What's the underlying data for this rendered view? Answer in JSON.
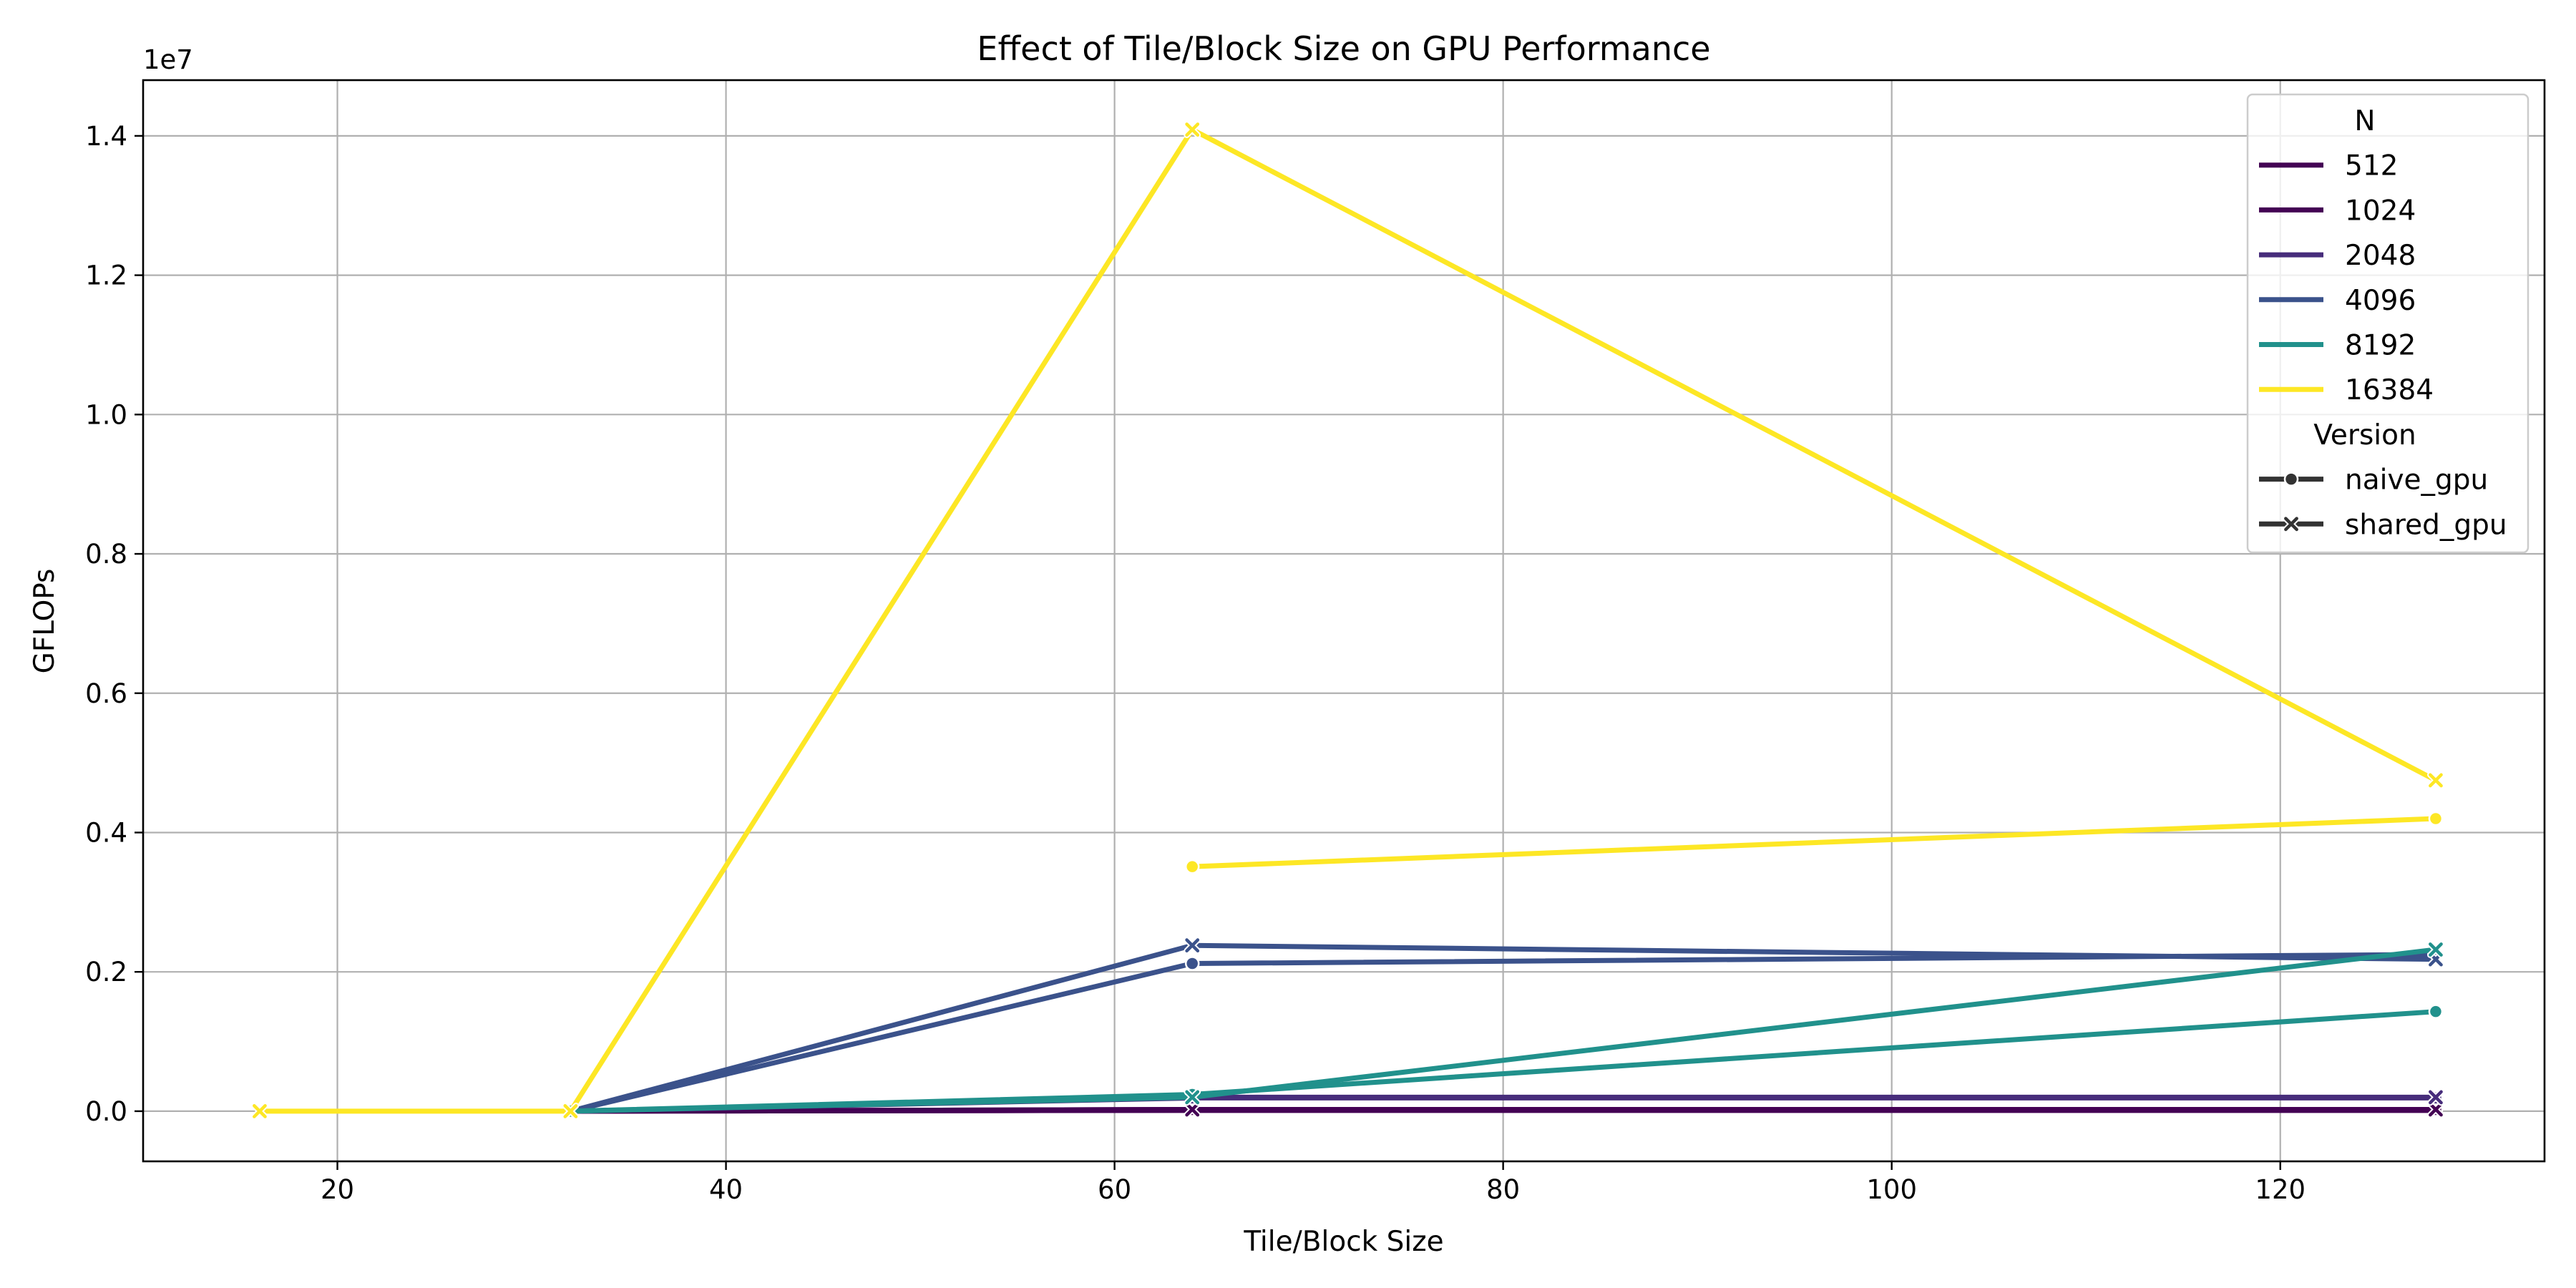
{
  "chart_data": {
    "type": "line",
    "title": "Effect of Tile/Block Size on GPU Performance",
    "xlabel": "Tile/Block Size",
    "ylabel": "GFLOPs",
    "y_offset_label": "1e7",
    "xlim": [
      10,
      133.6
    ],
    "ylim": [
      -720000,
      14800000
    ],
    "x_ticks": [
      20,
      40,
      60,
      80,
      100,
      120
    ],
    "y_ticks": [
      0,
      2000000,
      4000000,
      6000000,
      8000000,
      10000000,
      12000000,
      14000000
    ],
    "y_tick_labels": [
      "0.0",
      "0.2",
      "0.4",
      "0.6",
      "0.8",
      "1.0",
      "1.2",
      "1.4"
    ],
    "grid": true,
    "legend": {
      "placement": "top-right",
      "hue_title": "N",
      "style_title": "Version",
      "hue_entries": [
        {
          "label": "512",
          "color": "#440154"
        },
        {
          "label": "1024",
          "color": "#440154"
        },
        {
          "label": "2048",
          "color": "#472d7b"
        },
        {
          "label": "4096",
          "color": "#3b528b"
        },
        {
          "label": "8192",
          "color": "#21918c"
        },
        {
          "label": "16384",
          "color": "#fde725"
        }
      ],
      "style_entries": [
        {
          "label": "naive_gpu",
          "marker": "circle"
        },
        {
          "label": "shared_gpu",
          "marker": "x"
        }
      ]
    },
    "series": [
      {
        "N": "512",
        "version": "naive_gpu",
        "color": "#440154",
        "marker": "circle",
        "x": [
          32,
          64,
          128
        ],
        "y": [
          0,
          12000,
          12000
        ]
      },
      {
        "N": "512",
        "version": "shared_gpu",
        "color": "#440154",
        "marker": "x",
        "x": [
          32,
          64,
          128
        ],
        "y": [
          0,
          12000,
          12000
        ]
      },
      {
        "N": "1024",
        "version": "naive_gpu",
        "color": "#440154",
        "marker": "circle",
        "x": [
          32,
          64,
          128
        ],
        "y": [
          0,
          25000,
          25000
        ]
      },
      {
        "N": "1024",
        "version": "shared_gpu",
        "color": "#440154",
        "marker": "x",
        "x": [
          32,
          64,
          128
        ],
        "y": [
          0,
          25000,
          25000
        ]
      },
      {
        "N": "2048",
        "version": "naive_gpu",
        "color": "#472d7b",
        "marker": "circle",
        "x": [
          32,
          64,
          128
        ],
        "y": [
          0,
          190000,
          190000
        ]
      },
      {
        "N": "2048",
        "version": "shared_gpu",
        "color": "#472d7b",
        "marker": "x",
        "x": [
          32,
          64,
          128
        ],
        "y": [
          0,
          200000,
          200000
        ]
      },
      {
        "N": "4096",
        "version": "naive_gpu",
        "color": "#3b528b",
        "marker": "circle",
        "x": [
          32,
          64,
          128
        ],
        "y": [
          0,
          2120000,
          2250000
        ]
      },
      {
        "N": "4096",
        "version": "shared_gpu",
        "color": "#3b528b",
        "marker": "x",
        "x": [
          32,
          64,
          128
        ],
        "y": [
          0,
          2380000,
          2180000
        ]
      },
      {
        "N": "8192",
        "version": "naive_gpu",
        "color": "#21918c",
        "marker": "circle",
        "x": [
          32,
          64,
          128
        ],
        "y": [
          0,
          240000,
          1430000
        ]
      },
      {
        "N": "8192",
        "version": "shared_gpu",
        "color": "#21918c",
        "marker": "x",
        "x": [
          32,
          64,
          128
        ],
        "y": [
          0,
          200000,
          2320000
        ]
      },
      {
        "N": "16384",
        "version": "naive_gpu",
        "color": "#fde725",
        "marker": "circle",
        "x": [
          64,
          128
        ],
        "y": [
          3510000,
          4200000
        ]
      },
      {
        "N": "16384",
        "version": "shared_gpu",
        "color": "#fde725",
        "marker": "x",
        "x": [
          16,
          32,
          64,
          128
        ],
        "y": [
          0,
          0,
          14090000,
          4750000
        ]
      }
    ]
  }
}
